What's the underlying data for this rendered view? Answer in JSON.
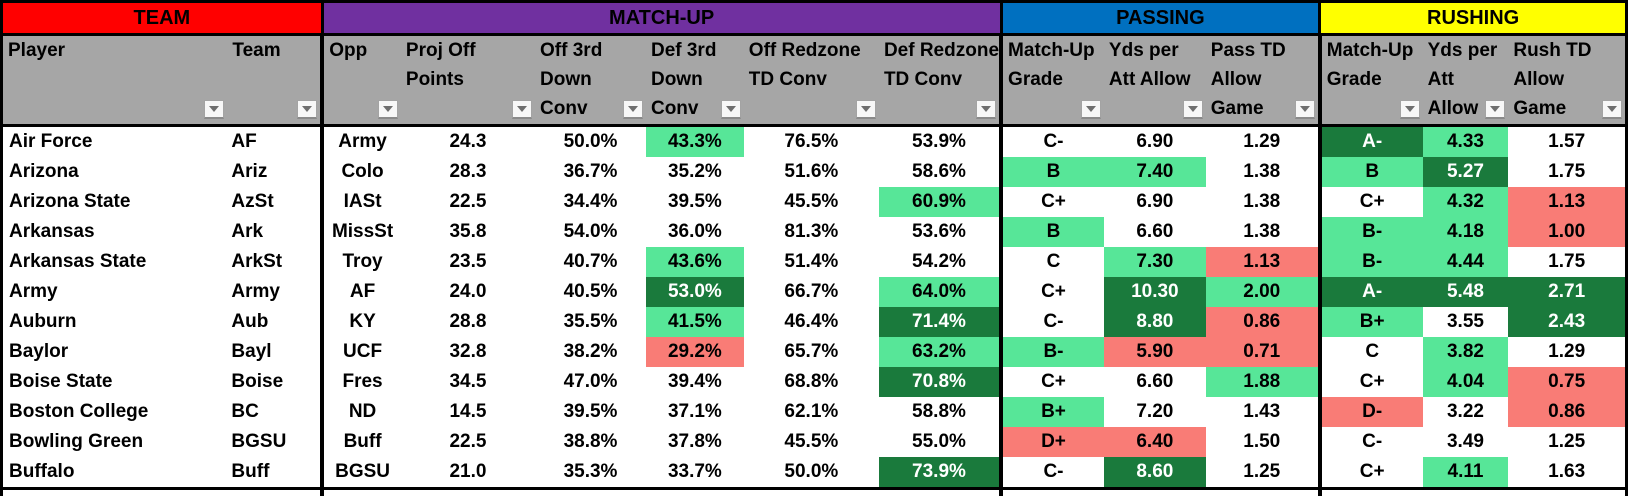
{
  "colors": {
    "light_green": "#57E698",
    "dark_green": "#1A7A3C",
    "red": "#F97C76",
    "header_gray": "#A6A6A6"
  },
  "sections": [
    {
      "label": "TEAM",
      "color": "#FF0000",
      "text_color": "#000000"
    },
    {
      "label": "MATCH-UP",
      "color": "#7030A0",
      "text_color": "#000000"
    },
    {
      "label": "PASSING",
      "color": "#0070C0",
      "text_color": "#000000"
    },
    {
      "label": "RUSHING",
      "color": "#FFFF00",
      "text_color": "#000000"
    }
  ],
  "columns": [
    {
      "key": "player",
      "line1": "Player"
    },
    {
      "key": "team",
      "line1": "Team"
    },
    {
      "key": "opp",
      "line1": "Opp"
    },
    {
      "key": "proj_off_points",
      "line1": "Proj Off",
      "line2": "Points"
    },
    {
      "key": "off_3rd_down_conv",
      "line1": "Off 3rd",
      "line2": "Down",
      "line3": "Conv"
    },
    {
      "key": "def_3rd_down_conv",
      "line1": "Def 3rd",
      "line2": "Down",
      "line3": "Conv"
    },
    {
      "key": "off_redzone_td_conv",
      "line1": "Off Redzone",
      "line2": "TD Conv"
    },
    {
      "key": "def_redzone_td_conv",
      "line1": "Def Redzone",
      "line2": "TD Conv"
    },
    {
      "key": "pass_matchup_grade",
      "line1": "Match-Up",
      "line2": "Grade"
    },
    {
      "key": "pass_yds_per_att_allow",
      "line1": "Yds per",
      "line2": "Att Allow"
    },
    {
      "key": "pass_td_allow_game",
      "line1": "Pass TD",
      "line2": "Allow",
      "line3": "Game"
    },
    {
      "key": "rush_matchup_grade",
      "line1": "Match-Up",
      "line2": "Grade"
    },
    {
      "key": "rush_yds_per_att_allow",
      "line1": "Yds per",
      "line2": "Att",
      "line3": "Allow"
    },
    {
      "key": "rush_td_allow_game",
      "line1": "Rush TD",
      "line2": "Allow",
      "line3": "Game"
    }
  ],
  "rows": [
    {
      "cells": [
        {
          "v": "Air Force",
          "bg": "w"
        },
        {
          "v": "AF",
          "bg": "w"
        },
        {
          "v": "Army",
          "bg": "w"
        },
        {
          "v": "24.3",
          "bg": "w"
        },
        {
          "v": "50.0%",
          "bg": "w"
        },
        {
          "v": "43.3%",
          "bg": "g"
        },
        {
          "v": "76.5%",
          "bg": "w"
        },
        {
          "v": "53.9%",
          "bg": "w"
        },
        {
          "v": "C-",
          "bg": "w"
        },
        {
          "v": "6.90",
          "bg": "w"
        },
        {
          "v": "1.29",
          "bg": "w"
        },
        {
          "v": "A-",
          "bg": "G"
        },
        {
          "v": "4.33",
          "bg": "g"
        },
        {
          "v": "1.57",
          "bg": "w"
        }
      ]
    },
    {
      "cells": [
        {
          "v": "Arizona",
          "bg": "w"
        },
        {
          "v": "Ariz",
          "bg": "w"
        },
        {
          "v": "Colo",
          "bg": "w"
        },
        {
          "v": "28.3",
          "bg": "w"
        },
        {
          "v": "36.7%",
          "bg": "w"
        },
        {
          "v": "35.2%",
          "bg": "w"
        },
        {
          "v": "51.6%",
          "bg": "w"
        },
        {
          "v": "58.6%",
          "bg": "w"
        },
        {
          "v": "B",
          "bg": "g"
        },
        {
          "v": "7.40",
          "bg": "g"
        },
        {
          "v": "1.38",
          "bg": "w"
        },
        {
          "v": "B",
          "bg": "g"
        },
        {
          "v": "5.27",
          "bg": "G"
        },
        {
          "v": "1.75",
          "bg": "w"
        }
      ]
    },
    {
      "cells": [
        {
          "v": "Arizona State",
          "bg": "w"
        },
        {
          "v": "AzSt",
          "bg": "w"
        },
        {
          "v": "IASt",
          "bg": "w"
        },
        {
          "v": "22.5",
          "bg": "w"
        },
        {
          "v": "34.4%",
          "bg": "w"
        },
        {
          "v": "39.5%",
          "bg": "w"
        },
        {
          "v": "45.5%",
          "bg": "w"
        },
        {
          "v": "60.9%",
          "bg": "g"
        },
        {
          "v": "C+",
          "bg": "w"
        },
        {
          "v": "6.90",
          "bg": "w"
        },
        {
          "v": "1.38",
          "bg": "w"
        },
        {
          "v": "C+",
          "bg": "w"
        },
        {
          "v": "4.32",
          "bg": "g"
        },
        {
          "v": "1.13",
          "bg": "r"
        }
      ]
    },
    {
      "cells": [
        {
          "v": "Arkansas",
          "bg": "w"
        },
        {
          "v": "Ark",
          "bg": "w"
        },
        {
          "v": "MissSt",
          "bg": "w"
        },
        {
          "v": "35.8",
          "bg": "w"
        },
        {
          "v": "54.0%",
          "bg": "w"
        },
        {
          "v": "36.0%",
          "bg": "w"
        },
        {
          "v": "81.3%",
          "bg": "w"
        },
        {
          "v": "53.6%",
          "bg": "w"
        },
        {
          "v": "B",
          "bg": "g"
        },
        {
          "v": "6.60",
          "bg": "w"
        },
        {
          "v": "1.38",
          "bg": "w"
        },
        {
          "v": "B-",
          "bg": "g"
        },
        {
          "v": "4.18",
          "bg": "g"
        },
        {
          "v": "1.00",
          "bg": "r"
        }
      ]
    },
    {
      "cells": [
        {
          "v": "Arkansas State",
          "bg": "w"
        },
        {
          "v": "ArkSt",
          "bg": "w"
        },
        {
          "v": "Troy",
          "bg": "w"
        },
        {
          "v": "23.5",
          "bg": "w"
        },
        {
          "v": "40.7%",
          "bg": "w"
        },
        {
          "v": "43.6%",
          "bg": "g"
        },
        {
          "v": "51.4%",
          "bg": "w"
        },
        {
          "v": "54.2%",
          "bg": "w"
        },
        {
          "v": "C",
          "bg": "w"
        },
        {
          "v": "7.30",
          "bg": "g"
        },
        {
          "v": "1.13",
          "bg": "r"
        },
        {
          "v": "B-",
          "bg": "g"
        },
        {
          "v": "4.44",
          "bg": "g"
        },
        {
          "v": "1.75",
          "bg": "w"
        }
      ]
    },
    {
      "cells": [
        {
          "v": "Army",
          "bg": "w"
        },
        {
          "v": "Army",
          "bg": "w"
        },
        {
          "v": "AF",
          "bg": "w"
        },
        {
          "v": "24.0",
          "bg": "w"
        },
        {
          "v": "40.5%",
          "bg": "w"
        },
        {
          "v": "53.0%",
          "bg": "G"
        },
        {
          "v": "66.7%",
          "bg": "w"
        },
        {
          "v": "64.0%",
          "bg": "g"
        },
        {
          "v": "C+",
          "bg": "w"
        },
        {
          "v": "10.30",
          "bg": "G"
        },
        {
          "v": "2.00",
          "bg": "g"
        },
        {
          "v": "A-",
          "bg": "G"
        },
        {
          "v": "5.48",
          "bg": "G"
        },
        {
          "v": "2.71",
          "bg": "G"
        }
      ]
    },
    {
      "cells": [
        {
          "v": "Auburn",
          "bg": "w"
        },
        {
          "v": "Aub",
          "bg": "w"
        },
        {
          "v": "KY",
          "bg": "w"
        },
        {
          "v": "28.8",
          "bg": "w"
        },
        {
          "v": "35.5%",
          "bg": "w"
        },
        {
          "v": "41.5%",
          "bg": "g"
        },
        {
          "v": "46.4%",
          "bg": "w"
        },
        {
          "v": "71.4%",
          "bg": "G"
        },
        {
          "v": "C-",
          "bg": "w"
        },
        {
          "v": "8.80",
          "bg": "G"
        },
        {
          "v": "0.86",
          "bg": "r"
        },
        {
          "v": "B+",
          "bg": "g"
        },
        {
          "v": "3.55",
          "bg": "w"
        },
        {
          "v": "2.43",
          "bg": "G"
        }
      ]
    },
    {
      "cells": [
        {
          "v": "Baylor",
          "bg": "w"
        },
        {
          "v": "Bayl",
          "bg": "w"
        },
        {
          "v": "UCF",
          "bg": "w"
        },
        {
          "v": "32.8",
          "bg": "w"
        },
        {
          "v": "38.2%",
          "bg": "w"
        },
        {
          "v": "29.2%",
          "bg": "r"
        },
        {
          "v": "65.7%",
          "bg": "w"
        },
        {
          "v": "63.2%",
          "bg": "g"
        },
        {
          "v": "B-",
          "bg": "g"
        },
        {
          "v": "5.90",
          "bg": "r"
        },
        {
          "v": "0.71",
          "bg": "r"
        },
        {
          "v": "C",
          "bg": "w"
        },
        {
          "v": "3.82",
          "bg": "g"
        },
        {
          "v": "1.29",
          "bg": "w"
        }
      ]
    },
    {
      "cells": [
        {
          "v": "Boise State",
          "bg": "w"
        },
        {
          "v": "Boise",
          "bg": "w"
        },
        {
          "v": "Fres",
          "bg": "w"
        },
        {
          "v": "34.5",
          "bg": "w"
        },
        {
          "v": "47.0%",
          "bg": "w"
        },
        {
          "v": "39.4%",
          "bg": "w"
        },
        {
          "v": "68.8%",
          "bg": "w"
        },
        {
          "v": "70.8%",
          "bg": "G"
        },
        {
          "v": "C+",
          "bg": "w"
        },
        {
          "v": "6.60",
          "bg": "w"
        },
        {
          "v": "1.88",
          "bg": "g"
        },
        {
          "v": "C+",
          "bg": "w"
        },
        {
          "v": "4.04",
          "bg": "g"
        },
        {
          "v": "0.75",
          "bg": "r"
        }
      ]
    },
    {
      "cells": [
        {
          "v": "Boston College",
          "bg": "w"
        },
        {
          "v": "BC",
          "bg": "w"
        },
        {
          "v": "ND",
          "bg": "w"
        },
        {
          "v": "14.5",
          "bg": "w"
        },
        {
          "v": "39.5%",
          "bg": "w"
        },
        {
          "v": "37.1%",
          "bg": "w"
        },
        {
          "v": "62.1%",
          "bg": "w"
        },
        {
          "v": "58.8%",
          "bg": "w"
        },
        {
          "v": "B+",
          "bg": "g"
        },
        {
          "v": "7.20",
          "bg": "w"
        },
        {
          "v": "1.43",
          "bg": "w"
        },
        {
          "v": "D-",
          "bg": "r"
        },
        {
          "v": "3.22",
          "bg": "w"
        },
        {
          "v": "0.86",
          "bg": "r"
        }
      ]
    },
    {
      "cells": [
        {
          "v": "Bowling Green",
          "bg": "w"
        },
        {
          "v": "BGSU",
          "bg": "w"
        },
        {
          "v": "Buff",
          "bg": "w"
        },
        {
          "v": "22.5",
          "bg": "w"
        },
        {
          "v": "38.8%",
          "bg": "w"
        },
        {
          "v": "37.8%",
          "bg": "w"
        },
        {
          "v": "45.5%",
          "bg": "w"
        },
        {
          "v": "55.0%",
          "bg": "w"
        },
        {
          "v": "D+",
          "bg": "r"
        },
        {
          "v": "6.40",
          "bg": "r"
        },
        {
          "v": "1.50",
          "bg": "w"
        },
        {
          "v": "C-",
          "bg": "w"
        },
        {
          "v": "3.49",
          "bg": "w"
        },
        {
          "v": "1.25",
          "bg": "w"
        }
      ]
    },
    {
      "cells": [
        {
          "v": "Buffalo",
          "bg": "w"
        },
        {
          "v": "Buff",
          "bg": "w"
        },
        {
          "v": "BGSU",
          "bg": "w"
        },
        {
          "v": "21.0",
          "bg": "w"
        },
        {
          "v": "35.3%",
          "bg": "w"
        },
        {
          "v": "33.7%",
          "bg": "w"
        },
        {
          "v": "50.0%",
          "bg": "w"
        },
        {
          "v": "73.9%",
          "bg": "G"
        },
        {
          "v": "C-",
          "bg": "w"
        },
        {
          "v": "8.60",
          "bg": "G"
        },
        {
          "v": "1.25",
          "bg": "w"
        },
        {
          "v": "C+",
          "bg": "w"
        },
        {
          "v": "4.11",
          "bg": "g"
        },
        {
          "v": "1.63",
          "bg": "w"
        }
      ]
    }
  ],
  "partial_next_row": {
    "visible": true,
    "cell_bgs": [
      "w",
      "w",
      "w",
      "w",
      "w",
      "r",
      "w",
      "w",
      "w",
      "w",
      "w",
      "w",
      "w",
      "w"
    ]
  }
}
